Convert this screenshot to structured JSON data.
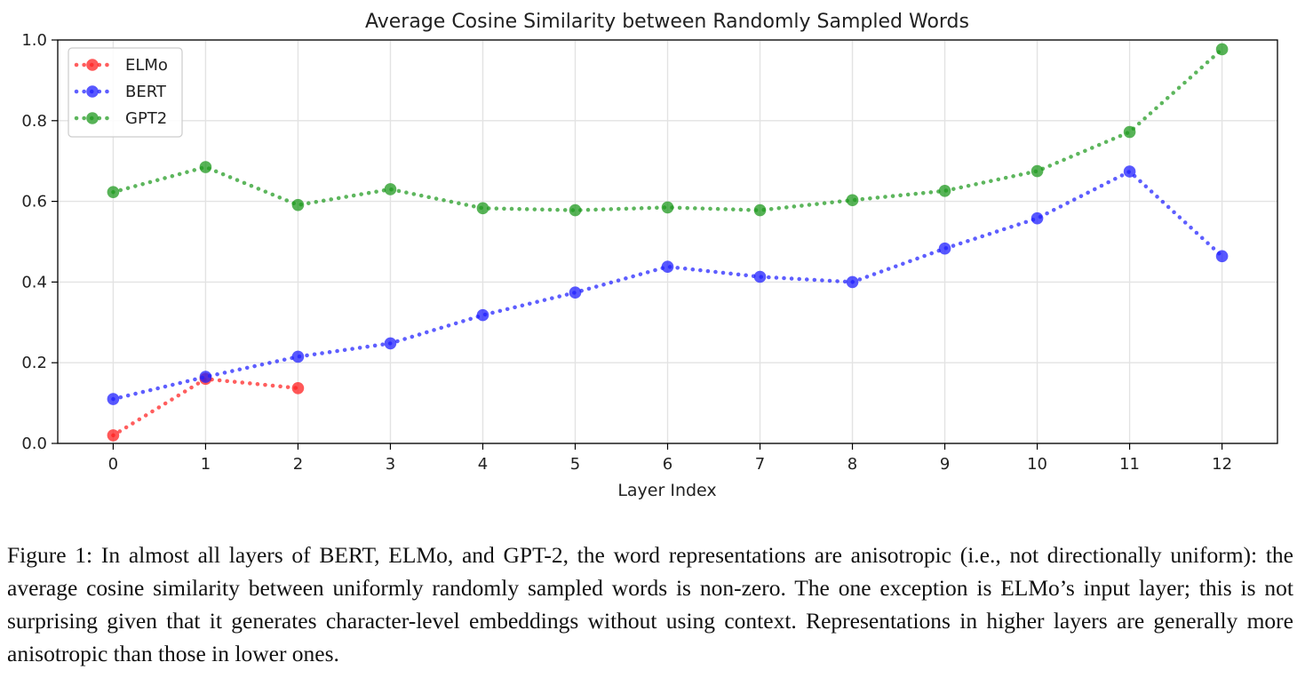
{
  "chart_data": {
    "type": "line",
    "title": "Average Cosine Similarity between Randomly Sampled Words",
    "xlabel": "Layer Index",
    "ylabel": "",
    "x": [
      0,
      1,
      2,
      3,
      4,
      5,
      6,
      7,
      8,
      9,
      10,
      11,
      12
    ],
    "xlim": [
      -0.6,
      12.6
    ],
    "ylim": [
      0.0,
      1.0
    ],
    "xticks": [
      "0",
      "1",
      "2",
      "3",
      "4",
      "5",
      "6",
      "7",
      "8",
      "9",
      "10",
      "11",
      "12"
    ],
    "yticks": [
      "0.0",
      "0.2",
      "0.4",
      "0.6",
      "0.8",
      "1.0"
    ],
    "grid": true,
    "legend_position": "top-left",
    "line_style": "dotted with circle markers",
    "series": [
      {
        "name": "ELMo",
        "color": "#ff2020",
        "x": [
          0,
          1,
          2
        ],
        "values": [
          0.02,
          0.16,
          0.137
        ]
      },
      {
        "name": "BERT",
        "color": "#2020ff",
        "x": [
          0,
          1,
          2,
          3,
          4,
          5,
          6,
          7,
          8,
          9,
          10,
          11,
          12
        ],
        "values": [
          0.11,
          0.165,
          0.215,
          0.248,
          0.318,
          0.374,
          0.438,
          0.413,
          0.4,
          0.483,
          0.558,
          0.674,
          0.464
        ]
      },
      {
        "name": "GPT2",
        "color": "#1f9a1f",
        "x": [
          0,
          1,
          2,
          3,
          4,
          5,
          6,
          7,
          8,
          9,
          10,
          11,
          12
        ],
        "values": [
          0.623,
          0.685,
          0.591,
          0.63,
          0.583,
          0.578,
          0.585,
          0.578,
          0.603,
          0.626,
          0.675,
          0.772,
          0.977
        ]
      }
    ]
  },
  "caption": {
    "text": "Figure 1: In almost all layers of BERT, ELMo, and GPT-2, the word representations are anisotropic (i.e., not directionally uniform): the average cosine similarity between uniformly randomly sampled words is non-zero. The one exception is ELMo’s input layer; this is not surprising given that it generates character-level embeddings without using context. Representations in higher layers are generally more anisotropic than those in lower ones."
  }
}
